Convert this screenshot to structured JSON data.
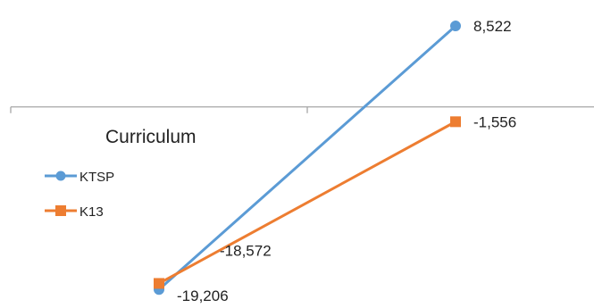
{
  "chart_data": {
    "type": "line",
    "title": "",
    "xlabel": "",
    "ylabel": "",
    "categories": [
      "",
      ""
    ],
    "ylim": [
      -20500,
      10500
    ],
    "grid": false,
    "legend": {
      "title": "Curriculum",
      "placement": "left"
    },
    "series": [
      {
        "name": "KTSP",
        "values": [
          -19206,
          8522
        ],
        "labels": [
          "-19,206",
          "8,522"
        ],
        "color": "#5b9bd5",
        "marker": "circle"
      },
      {
        "name": "K13",
        "values": [
          -18572,
          -1556
        ],
        "labels": [
          "-18,572",
          "-1,556"
        ],
        "color": "#ed7d31",
        "marker": "square"
      }
    ]
  }
}
